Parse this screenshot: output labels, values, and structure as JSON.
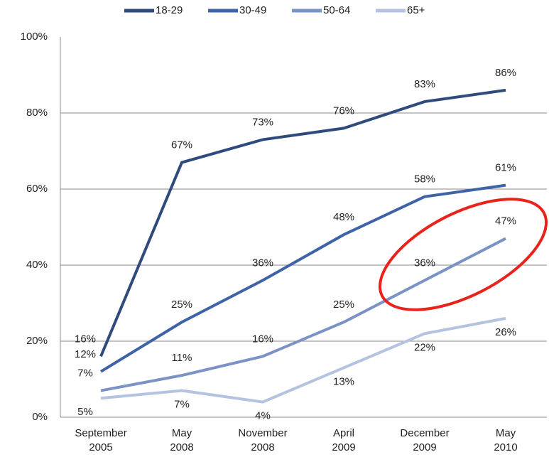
{
  "chart_data": {
    "type": "line",
    "categories": [
      "September 2005",
      "May 2008",
      "November 2008",
      "April 2009",
      "December 2009",
      "May 2010"
    ],
    "series": [
      {
        "name": "18-29",
        "color": "#2f4b7e",
        "values": [
          16,
          67,
          73,
          76,
          83,
          86
        ],
        "value_labels": [
          "16%",
          "67%",
          "73%",
          "76%",
          "83%",
          "86%"
        ]
      },
      {
        "name": "30-49",
        "color": "#3f63a7",
        "values": [
          12,
          25,
          36,
          48,
          58,
          61
        ],
        "value_labels": [
          "12%",
          "25%",
          "36%",
          "48%",
          "58%",
          "61%"
        ]
      },
      {
        "name": "50-64",
        "color": "#7a92c5",
        "values": [
          7,
          11,
          16,
          25,
          36,
          47
        ],
        "value_labels": [
          "7%",
          "11%",
          "16%",
          "25%",
          "36%",
          "47%"
        ]
      },
      {
        "name": "65+",
        "color": "#b4c3e0",
        "values": [
          5,
          7,
          4,
          13,
          22,
          26
        ],
        "value_labels": [
          "5%",
          "7%",
          "4%",
          "13%",
          "22%",
          "26%"
        ]
      }
    ],
    "ylim": [
      0,
      100
    ],
    "yticks": [
      {
        "value": 0,
        "label": "0%"
      },
      {
        "value": 20,
        "label": "20%"
      },
      {
        "value": 40,
        "label": "40%"
      },
      {
        "value": 60,
        "label": "60%"
      },
      {
        "value": 80,
        "label": "80%"
      },
      {
        "value": 100,
        "label": "100%"
      }
    ],
    "grid": true,
    "legend": "top"
  }
}
